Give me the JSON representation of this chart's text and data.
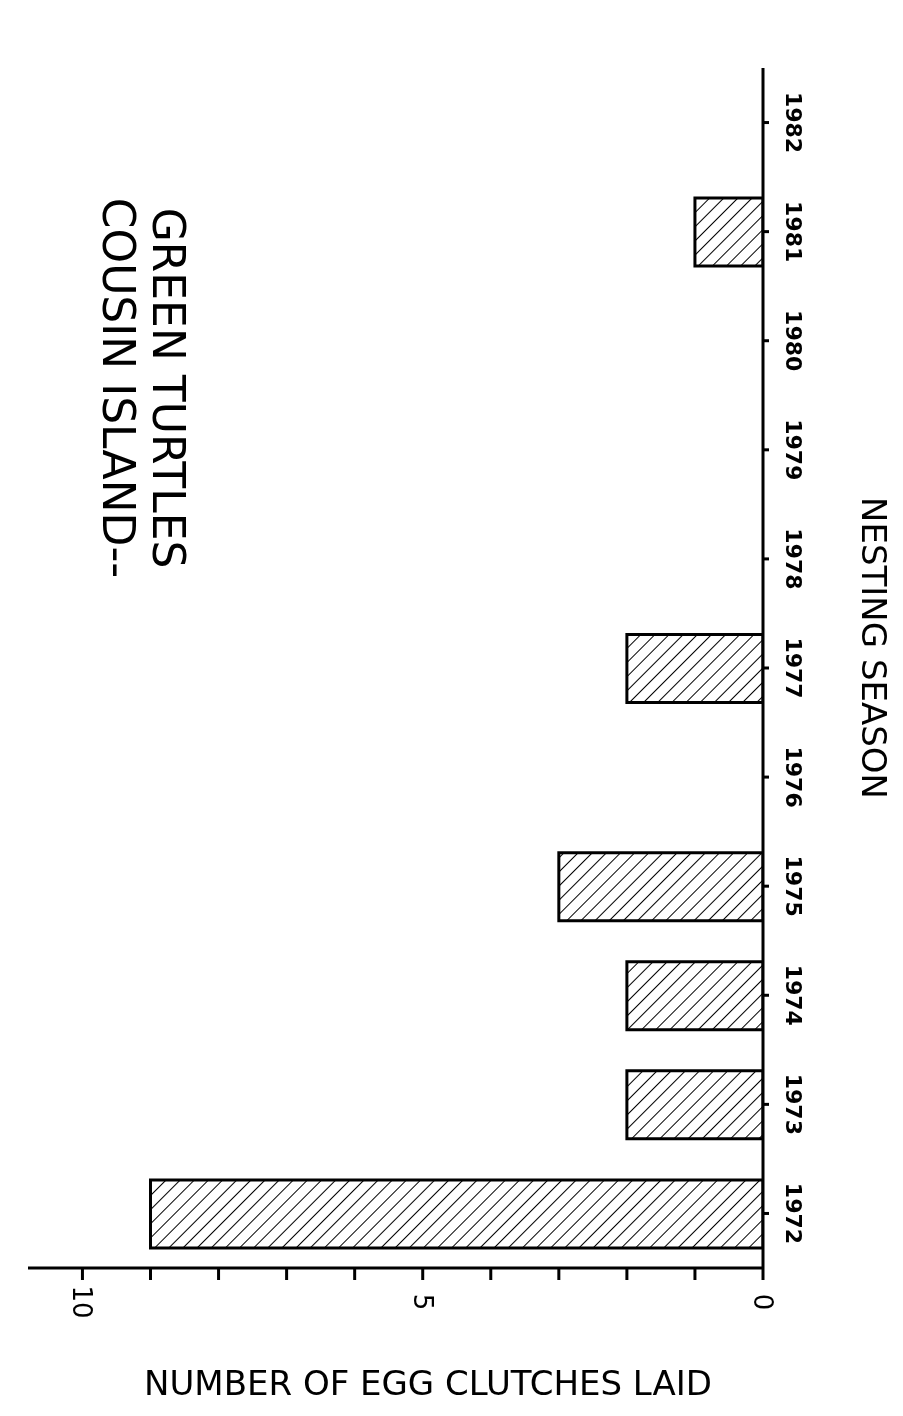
{
  "chart_data": {
    "type": "bar",
    "title": "COUSIN ISLAND--",
    "subtitle": "GREEN TURTLES",
    "xlabel": "NUMBER OF EGG CLUTCHES LAID",
    "ylabel": "NESTING SEASON",
    "orientation": "horizontal",
    "categories": [
      "1982",
      "1981",
      "1980",
      "1979",
      "1978",
      "1977",
      "1976",
      "1975",
      "1974",
      "1973",
      "1972"
    ],
    "values": [
      0,
      1,
      0,
      0,
      0,
      2,
      0,
      3,
      2,
      2,
      9
    ],
    "color": "#000000",
    "xlim": [
      10.8,
      0
    ],
    "xticks": [
      0,
      {
        "value": 1,
        "label": null
      },
      {
        "value": 2,
        "label": null
      },
      {
        "value": 3,
        "label": null
      },
      {
        "value": 4,
        "label": null
      },
      5,
      {
        "value": 6,
        "label": null
      },
      {
        "value": 7,
        "label": null
      },
      {
        "value": 8,
        "label": null
      },
      {
        "value": 9,
        "label": null
      },
      10
    ]
  }
}
